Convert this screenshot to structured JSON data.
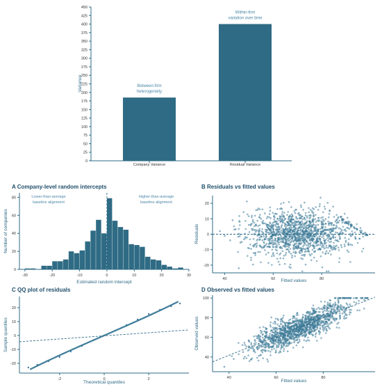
{
  "colors": {
    "bar": "#2f6b84",
    "point": "#3d7a98",
    "axis": "#2e6a86",
    "title": "#1f4e6a",
    "annotation": "#4a87a8"
  },
  "chart_data": [
    {
      "type": "bar",
      "categories": [
        "Company Variance",
        "Residual Variance"
      ],
      "values": [
        185,
        400
      ],
      "ylabel": "Variance",
      "ylim": [
        0,
        450
      ],
      "yticks": [
        "0",
        "25",
        "50",
        "75",
        "100",
        "125",
        "150",
        "175",
        "200",
        "225",
        "250",
        "275",
        "300",
        "325",
        "350",
        "375",
        "400",
        "425",
        "450"
      ],
      "annotations": [
        {
          "lines": [
            "Between-firm",
            "heterogeneity"
          ]
        },
        {
          "lines": [
            "Within-firm",
            "variation over time"
          ]
        }
      ]
    },
    {
      "type": "bar",
      "title": "A  Company-level random intercepts",
      "xlabel": "Estimated random intercept",
      "ylabel": "Number of companies",
      "xlim": [
        -32,
        30
      ],
      "ylim": [
        0,
        85
      ],
      "bin_width": 2,
      "bins_start": -30,
      "values": [
        1,
        1,
        0,
        4,
        4,
        9,
        9,
        11,
        20,
        18,
        21,
        31,
        43,
        55,
        40,
        79,
        54,
        47,
        44,
        28,
        27,
        25,
        14,
        11,
        10,
        5,
        3,
        1,
        2
      ],
      "xticks": [
        "-30",
        "-20",
        "-10",
        "0",
        "10",
        "20",
        "30"
      ],
      "yticks": [
        "0",
        "20",
        "40",
        "60",
        "80"
      ],
      "annotations": [
        {
          "lines": [
            "Lower-than-average",
            "baseline alignment"
          ]
        },
        {
          "lines": [
            "Higher-than-average",
            "baseline alignment"
          ]
        }
      ]
    },
    {
      "type": "scatter",
      "title": "B  Residuals vs fitted values",
      "xlabel": "Fitted values",
      "ylabel": "Residuals",
      "xlim": [
        35,
        102
      ],
      "ylim": [
        -25,
        25
      ],
      "xticks": [
        "40",
        "60",
        "80"
      ],
      "yticks": [
        "-20",
        "-10",
        "0",
        "10",
        "20"
      ],
      "points": [
        [
          38,
          2
        ],
        [
          40,
          -1
        ],
        [
          44,
          3
        ],
        [
          47,
          -5
        ],
        [
          50,
          6
        ],
        [
          52,
          -8
        ],
        [
          55,
          10
        ],
        [
          58,
          -12
        ],
        [
          60,
          4
        ],
        [
          62,
          -3
        ],
        [
          64,
          8
        ],
        [
          66,
          -6
        ],
        [
          68,
          12
        ],
        [
          70,
          -2
        ],
        [
          72,
          5
        ],
        [
          74,
          -9
        ],
        [
          76,
          15
        ],
        [
          78,
          -4
        ],
        [
          80,
          7
        ],
        [
          82,
          -11
        ],
        [
          84,
          3
        ],
        [
          86,
          9
        ],
        [
          88,
          -7
        ],
        [
          90,
          2
        ],
        [
          92,
          6
        ],
        [
          94,
          -3
        ],
        [
          96,
          4
        ],
        [
          98,
          1
        ]
      ]
    },
    {
      "type": "scatter",
      "title": "C  QQ plot of residuals",
      "xlabel": "Theoretical quantiles",
      "ylabel": "Sample quantiles",
      "xlim": [
        -3.8,
        3.8
      ],
      "ylim": [
        -27,
        28
      ],
      "xticks": [
        "-2",
        "0",
        "2"
      ],
      "yticks": [
        "-20",
        "-10",
        "0",
        "10",
        "20"
      ],
      "points": [
        [
          -3.4,
          -23
        ],
        [
          -3.0,
          -21
        ],
        [
          -2.5,
          -18.5
        ],
        [
          -2.0,
          -15.5
        ],
        [
          -1.5,
          -11.5
        ],
        [
          -1.0,
          -7.5
        ],
        [
          -0.5,
          -3.5
        ],
        [
          0,
          0
        ],
        [
          0.5,
          3.5
        ],
        [
          1.0,
          7.5
        ],
        [
          1.5,
          11.5
        ],
        [
          2.0,
          15.5
        ],
        [
          2.5,
          18.5
        ],
        [
          3.0,
          21
        ],
        [
          3.4,
          23
        ]
      ]
    },
    {
      "type": "scatter",
      "title": "D  Observed vs fitted values",
      "xlabel": "Fitted values",
      "ylabel": "Observed values",
      "xlim": [
        33,
        102
      ],
      "ylim": [
        25,
        103
      ],
      "xticks": [
        "40",
        "60",
        "80"
      ],
      "yticks": [
        "40",
        "60",
        "80",
        "100"
      ],
      "points": [
        [
          38,
          30
        ],
        [
          42,
          38
        ],
        [
          46,
          45
        ],
        [
          50,
          50
        ],
        [
          54,
          55
        ],
        [
          58,
          58
        ],
        [
          62,
          62
        ],
        [
          66,
          66
        ],
        [
          70,
          70
        ],
        [
          74,
          74
        ],
        [
          78,
          78
        ],
        [
          82,
          82
        ],
        [
          86,
          86
        ],
        [
          90,
          90
        ],
        [
          94,
          95
        ],
        [
          98,
          100
        ]
      ]
    }
  ]
}
